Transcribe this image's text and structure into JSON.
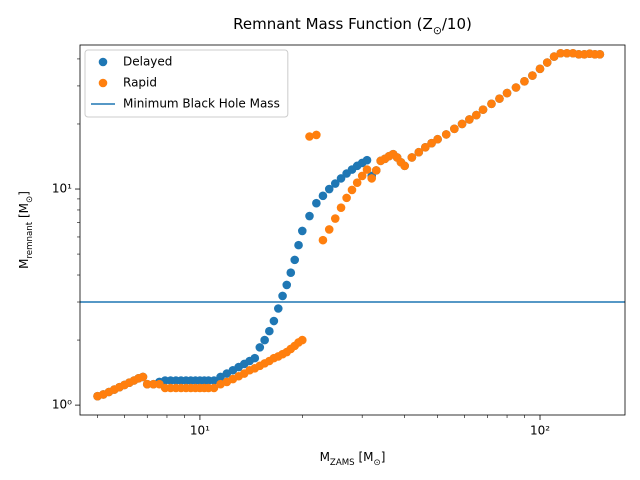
{
  "chart_data": {
    "type": "scatter",
    "title": [
      "Remnant Mass Function (Z",
      "⊙",
      "/10)"
    ],
    "xlabel": [
      "M",
      "ZAMS",
      " [M",
      "⊙",
      "]"
    ],
    "ylabel": [
      "M",
      "remnant",
      " [M",
      "⊙",
      "]"
    ],
    "xscale": "log",
    "yscale": "log",
    "xlim": [
      4.44,
      177.8
    ],
    "ylim": [
      0.9,
      46.4
    ],
    "xticks": [
      {
        "value": 10,
        "label": "10¹"
      },
      {
        "value": 100,
        "label": "10²"
      }
    ],
    "yticks": [
      {
        "value": 1,
        "label": "10⁰"
      },
      {
        "value": 10,
        "label": "10¹"
      }
    ],
    "xminorticks": [
      5,
      6,
      7,
      8,
      9,
      20,
      30,
      40,
      50,
      60,
      70,
      80,
      90
    ],
    "yminorticks": [
      2,
      3,
      4,
      5,
      6,
      7,
      8,
      9,
      20,
      30,
      40
    ],
    "legend": "upper left",
    "x": [
      5,
      5.2,
      5.4,
      5.6,
      5.8,
      6,
      6.2,
      6.4,
      6.6,
      6.8,
      7,
      7.3,
      7.6,
      7.9,
      8.2,
      8.5,
      8.8,
      9.1,
      9.4,
      9.7,
      10,
      10.3,
      10.6,
      11,
      11.5,
      12,
      12.5,
      13,
      13.5,
      14,
      14.5,
      15,
      15.5,
      16,
      16.5,
      17,
      17.5,
      18,
      18.5,
      19,
      19.5,
      20,
      21,
      22,
      23,
      24,
      25,
      26,
      27,
      28,
      29,
      30,
      31,
      32,
      33,
      34,
      35,
      36,
      37,
      38,
      39,
      40,
      42,
      44,
      46,
      48,
      50,
      53,
      56,
      59,
      62,
      65,
      68,
      72,
      76,
      80,
      85,
      90,
      95,
      100,
      105,
      110,
      115,
      120,
      125,
      130,
      135,
      140,
      145,
      150
    ],
    "series": [
      {
        "name": "Delayed",
        "color": "#1f77b4",
        "values": [
          1.1,
          1.12,
          1.15,
          1.18,
          1.21,
          1.24,
          1.27,
          1.3,
          1.33,
          1.35,
          1.25,
          1.25,
          1.28,
          1.3,
          1.3,
          1.3,
          1.3,
          1.3,
          1.3,
          1.3,
          1.3,
          1.3,
          1.3,
          1.3,
          1.35,
          1.4,
          1.45,
          1.5,
          1.55,
          1.6,
          1.65,
          1.85,
          2.0,
          2.2,
          2.45,
          2.8,
          3.2,
          3.6,
          4.1,
          4.7,
          5.5,
          6.4,
          7.5,
          8.6,
          9.3,
          10,
          10.6,
          11.2,
          11.8,
          12.3,
          12.8,
          13.2,
          13.6,
          11.5,
          12.2,
          13.5,
          13.8,
          14.2,
          14.5,
          14.0,
          13.3,
          12.8,
          14.0,
          14.8,
          15.6,
          16.3,
          17.0,
          17.9,
          19,
          20,
          21,
          22,
          23.3,
          24.8,
          26.2,
          27.8,
          29.5,
          31.5,
          33.5,
          36,
          38.5,
          41,
          42.5,
          42.5,
          42.5,
          42,
          42,
          42.3,
          42,
          42
        ]
      },
      {
        "name": "Rapid",
        "color": "#ff7f0e",
        "values": [
          1.1,
          1.12,
          1.15,
          1.18,
          1.21,
          1.24,
          1.27,
          1.3,
          1.33,
          1.35,
          1.25,
          1.25,
          1.25,
          1.2,
          1.2,
          1.2,
          1.2,
          1.2,
          1.2,
          1.2,
          1.2,
          1.2,
          1.2,
          1.2,
          1.25,
          1.28,
          1.32,
          1.36,
          1.4,
          1.45,
          1.48,
          1.52,
          1.56,
          1.6,
          1.65,
          1.68,
          1.72,
          1.76,
          1.82,
          1.88,
          1.95,
          2.0,
          17.5,
          17.8,
          5.8,
          6.5,
          7.3,
          8.2,
          9.1,
          9.9,
          10.7,
          11.5,
          12.3,
          11.2,
          12.2,
          13.5,
          13.8,
          14.2,
          14.5,
          14.0,
          13.3,
          12.8,
          14.0,
          14.8,
          15.6,
          16.3,
          17.0,
          17.9,
          19,
          20,
          21,
          22,
          23.3,
          24.8,
          26.2,
          27.8,
          29.5,
          31.5,
          33.5,
          36,
          38.5,
          41,
          42.5,
          42.5,
          42.5,
          42,
          42,
          42.3,
          42,
          42
        ]
      }
    ],
    "hlines": [
      {
        "name": "Minimum Black Hole Mass",
        "y": 3,
        "color": "#1f77b4"
      }
    ]
  }
}
